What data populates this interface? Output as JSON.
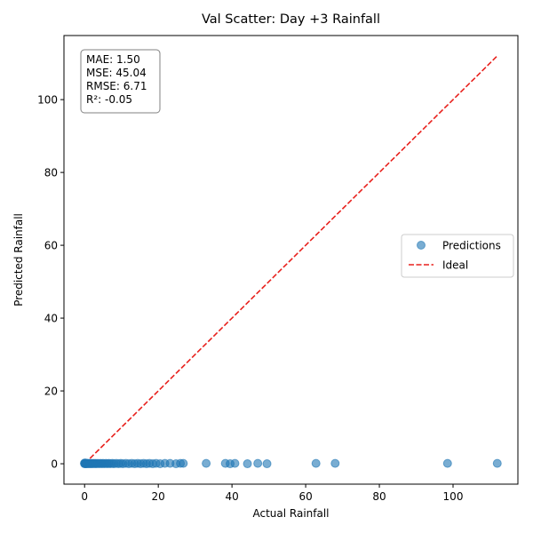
{
  "chart_data": {
    "type": "scatter",
    "title": "Val Scatter: Day +3 Rainfall",
    "xlabel": "Actual Rainfall",
    "ylabel": "Predicted Rainfall",
    "xlim": [
      -5.6,
      117.6
    ],
    "ylim": [
      -5.6,
      117.6
    ],
    "xticks": [
      0,
      20,
      40,
      60,
      80,
      100
    ],
    "yticks": [
      0,
      20,
      40,
      60,
      80,
      100
    ],
    "grid": false,
    "legend_position": "center-right",
    "stats_box": {
      "position": "top-left",
      "lines": [
        "MAE: 1.50",
        "MSE: 45.04",
        "RMSE: 6.71",
        "R²: -0.05"
      ]
    },
    "series": [
      {
        "name": "Predictions",
        "kind": "scatter",
        "color": "#1f77b4",
        "alpha": 0.6,
        "x": [
          0,
          0,
          0,
          0.1,
          0.2,
          0.3,
          0.4,
          0.5,
          0.6,
          0.8,
          1.0,
          1.2,
          1.4,
          1.6,
          1.8,
          2.0,
          2.2,
          2.5,
          2.8,
          3.0,
          3.3,
          3.6,
          4.0,
          4.3,
          4.7,
          5.0,
          5.4,
          5.8,
          6.2,
          6.6,
          7.0,
          7.5,
          8.0,
          8.6,
          9.2,
          9.8,
          10.4,
          11.2,
          12.0,
          12.8,
          13.6,
          14.4,
          15.2,
          16.0,
          16.8,
          17.6,
          18.5,
          19.4,
          20.5,
          21.8,
          23.2,
          24.8,
          26.0,
          26.8,
          33.0,
          38.2,
          39.5,
          40.8,
          44.2,
          47.0,
          49.5,
          62.8,
          68.0,
          98.5,
          112.0
        ],
        "y": [
          0,
          0.1,
          0.2,
          0.1,
          0,
          0.2,
          0,
          0.1,
          0,
          0.1,
          0,
          0.1,
          0,
          0.1,
          0,
          0.1,
          0,
          0.1,
          0,
          0.1,
          0,
          0.1,
          0,
          0.1,
          0,
          0.1,
          0,
          0.1,
          0,
          0.1,
          0,
          0.1,
          0,
          0.1,
          0,
          0.1,
          0,
          0.1,
          0,
          0.1,
          0,
          0.1,
          0,
          0.1,
          0,
          0.1,
          0,
          0.1,
          0,
          0.1,
          0.1,
          0,
          0.1,
          0.1,
          0.1,
          0.1,
          0,
          0.1,
          0,
          0.1,
          0,
          0.1,
          0.1,
          0.1,
          0.1
        ]
      },
      {
        "name": "Ideal",
        "kind": "line",
        "color": "#e8211d",
        "dash": "dashed",
        "x": [
          0,
          112
        ],
        "y": [
          0,
          112
        ]
      }
    ]
  }
}
